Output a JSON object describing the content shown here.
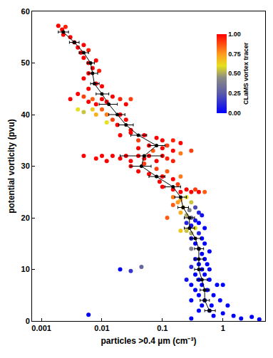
{
  "chart_data": {
    "type": "scatter",
    "x_label": "particles >0.4 µm (cm⁻³)",
    "y_label": "potential vorticity (pvu)",
    "log": "x",
    "grid": false,
    "xlim": [
      0.0007,
      5
    ],
    "xticks": [
      0.001,
      0.01,
      0.1,
      1
    ],
    "ylim": [
      0,
      60
    ],
    "yticks": [
      0,
      10,
      20,
      30,
      40,
      50,
      60
    ],
    "colorbar": {
      "title": "CLaMS vortex tracer",
      "range": [
        0,
        1
      ],
      "ticks": [
        {
          "value": 0,
          "label": "0.00"
        },
        {
          "value": 0.25,
          "label": "0.25"
        },
        {
          "value": 0.5,
          "label": "0.50"
        },
        {
          "value": 0.75,
          "label": "0.75"
        },
        {
          "value": 1,
          "label": "1.00"
        }
      ]
    },
    "series": [
      {
        "type": "scatter",
        "marker": "circle",
        "points": [
          [
            0.0019,
            57.2,
            1
          ],
          [
            0.0022,
            56.5,
            1
          ],
          [
            0.0025,
            57,
            0.95
          ],
          [
            0.0023,
            55.5,
            1
          ],
          [
            0.003,
            55,
            1
          ],
          [
            0.0035,
            54,
            1
          ],
          [
            0.004,
            53,
            1
          ],
          [
            0.005,
            53.5,
            1
          ],
          [
            0.0045,
            52,
            1
          ],
          [
            0.006,
            52.5,
            0.95
          ],
          [
            0.005,
            51,
            1
          ],
          [
            0.006,
            50,
            1
          ],
          [
            0.008,
            50.5,
            1
          ],
          [
            0.007,
            49,
            1
          ],
          [
            0.006,
            48,
            1
          ],
          [
            0.009,
            48.5,
            0.95
          ],
          [
            0.005,
            47,
            1
          ],
          [
            0.008,
            46,
            1
          ],
          [
            0.006,
            45,
            1
          ],
          [
            0.01,
            45.5,
            1
          ],
          [
            0.003,
            43,
            1
          ],
          [
            0.004,
            44,
            1
          ],
          [
            0.005,
            43.5,
            0.9
          ],
          [
            0.006,
            42.5,
            1
          ],
          [
            0.007,
            43,
            0.85
          ],
          [
            0.008,
            42,
            1
          ],
          [
            0.01,
            43,
            1
          ],
          [
            0.012,
            42.5,
            1
          ],
          [
            0.015,
            43.5,
            1
          ],
          [
            0.02,
            43,
            0.95
          ],
          [
            0.025,
            42,
            1
          ],
          [
            0.03,
            43,
            0.9
          ],
          [
            0.004,
            41,
            0.6
          ],
          [
            0.005,
            40.5,
            0.55
          ],
          [
            0.007,
            41,
            0.65
          ],
          [
            0.008,
            40,
            0.7
          ],
          [
            0.01,
            41,
            0.85
          ],
          [
            0.012,
            40,
            0.8
          ],
          [
            0.015,
            39,
            0.9
          ],
          [
            0.02,
            40,
            1
          ],
          [
            0.018,
            38,
            1
          ],
          [
            0.025,
            39,
            1
          ],
          [
            0.03,
            37,
            1
          ],
          [
            0.012,
            38.5,
            0.6
          ],
          [
            0.02,
            36,
            1
          ],
          [
            0.03,
            36.5,
            1
          ],
          [
            0.05,
            36,
            1
          ],
          [
            0.08,
            35.5,
            1
          ],
          [
            0.1,
            35,
            1
          ],
          [
            0.15,
            35,
            0.95
          ],
          [
            0.2,
            34.5,
            1
          ],
          [
            0.04,
            35,
            0.9
          ],
          [
            0.06,
            34,
            1
          ],
          [
            0.07,
            33,
            0.85
          ],
          [
            0.1,
            33.5,
            1
          ],
          [
            0.12,
            34,
            0.9
          ],
          [
            0.15,
            33,
            1
          ],
          [
            0.2,
            32.5,
            0.8
          ],
          [
            0.3,
            33,
            0.9
          ],
          [
            0.04,
            33.5,
            1
          ],
          [
            0.005,
            32,
            1
          ],
          [
            0.008,
            31.5,
            1
          ],
          [
            0.01,
            32,
            1
          ],
          [
            0.012,
            31,
            1
          ],
          [
            0.015,
            32,
            1
          ],
          [
            0.02,
            31.5,
            1
          ],
          [
            0.025,
            32,
            1
          ],
          [
            0.03,
            31,
            1
          ],
          [
            0.04,
            32,
            1
          ],
          [
            0.05,
            31.5,
            1
          ],
          [
            0.06,
            32,
            1
          ],
          [
            0.08,
            31,
            1
          ],
          [
            0.1,
            32,
            1
          ],
          [
            0.12,
            31.5,
            0.95
          ],
          [
            0.15,
            31,
            0.95
          ],
          [
            0.03,
            30,
            1
          ],
          [
            0.04,
            29,
            1
          ],
          [
            0.05,
            30.5,
            0.9
          ],
          [
            0.06,
            28.5,
            1
          ],
          [
            0.08,
            29.5,
            0.9
          ],
          [
            0.1,
            28,
            1
          ],
          [
            0.12,
            29,
            0.85
          ],
          [
            0.15,
            27.5,
            1
          ],
          [
            0.2,
            28,
            0.8
          ],
          [
            0.09,
            27,
            1
          ],
          [
            0.1,
            26,
            1
          ],
          [
            0.15,
            25.5,
            1
          ],
          [
            0.2,
            25,
            1
          ],
          [
            0.25,
            25.5,
            1
          ],
          [
            0.3,
            25,
            1
          ],
          [
            0.35,
            25.5,
            0.9
          ],
          [
            0.4,
            25,
            1
          ],
          [
            0.18,
            26.5,
            0.9
          ],
          [
            0.5,
            25,
            0.85
          ],
          [
            0.15,
            24,
            0.8
          ],
          [
            0.2,
            23.5,
            0.7
          ],
          [
            0.25,
            24,
            0.6
          ],
          [
            0.18,
            23,
            0.75
          ],
          [
            0.3,
            23,
            0.55
          ],
          [
            0.22,
            22,
            0.65
          ],
          [
            0.15,
            22.5,
            0.85
          ],
          [
            0.28,
            21.5,
            0.4
          ],
          [
            0.35,
            22,
            0.2
          ],
          [
            0.4,
            21,
            0.1
          ],
          [
            0.2,
            21,
            0.7
          ],
          [
            0.25,
            20.5,
            0.5
          ],
          [
            0.3,
            20,
            0.3
          ],
          [
            0.45,
            20.5,
            0.05
          ],
          [
            0.35,
            19.5,
            0.05
          ],
          [
            0.12,
            20,
            0.85
          ],
          [
            0.25,
            19,
            0.1
          ],
          [
            0.3,
            18.5,
            0.05
          ],
          [
            0.4,
            19,
            0
          ],
          [
            0.5,
            18,
            0
          ],
          [
            0.35,
            18,
            0.6
          ],
          [
            0.2,
            17.5,
            0.65
          ],
          [
            0.25,
            17.5,
            0.55
          ],
          [
            0.3,
            17,
            0.5
          ],
          [
            0.4,
            17,
            0.1
          ],
          [
            0.3,
            16,
            0.05
          ],
          [
            0.45,
            16,
            0
          ],
          [
            0.35,
            15,
            0
          ],
          [
            0.5,
            15,
            0
          ],
          [
            0.3,
            14,
            0.4
          ],
          [
            0.4,
            14,
            0.3
          ],
          [
            0.45,
            13,
            0
          ],
          [
            0.6,
            13.5,
            0
          ],
          [
            0.35,
            12,
            0.05
          ],
          [
            0.5,
            12,
            0
          ],
          [
            0.4,
            11,
            0
          ],
          [
            0.55,
            11,
            0
          ],
          [
            0.3,
            10.5,
            0.1
          ],
          [
            0.45,
            10,
            0
          ],
          [
            0.6,
            10,
            0
          ],
          [
            0.03,
            9.7,
            0.15
          ],
          [
            0.045,
            10.5,
            0.3
          ],
          [
            0.02,
            10,
            0
          ],
          [
            0.35,
            9,
            0
          ],
          [
            0.5,
            9,
            0
          ],
          [
            0.4,
            8,
            0
          ],
          [
            0.6,
            8,
            0
          ],
          [
            0.3,
            7,
            0
          ],
          [
            0.45,
            7,
            0
          ],
          [
            0.8,
            7,
            0
          ],
          [
            1,
            7,
            0
          ],
          [
            0.35,
            6,
            0
          ],
          [
            0.55,
            6,
            0
          ],
          [
            0.4,
            5,
            0
          ],
          [
            0.7,
            5,
            0
          ],
          [
            0.3,
            4,
            0
          ],
          [
            0.5,
            4,
            0
          ],
          [
            0.9,
            4,
            0
          ],
          [
            0.45,
            3,
            0
          ],
          [
            0.65,
            3,
            0
          ],
          [
            1.2,
            3,
            0
          ],
          [
            0.4,
            2,
            0
          ],
          [
            0.6,
            2,
            0
          ],
          [
            1,
            1.5,
            0
          ],
          [
            1.5,
            1,
            0
          ],
          [
            2,
            0.5,
            0
          ],
          [
            3,
            0.8,
            0
          ],
          [
            4,
            0.3,
            0
          ],
          [
            0.7,
            1,
            0
          ],
          [
            0.3,
            0.5,
            0
          ],
          [
            0.006,
            1.2,
            0
          ],
          [
            0.25,
            8,
            0.05
          ]
        ]
      },
      {
        "type": "line",
        "marker": "circle",
        "color": "#000000",
        "x": [
          0.0023,
          0.0035,
          0.005,
          0.0065,
          0.007,
          0.0075,
          0.01,
          0.013,
          0.018,
          0.025,
          0.04,
          0.08,
          0.05,
          0.045,
          0.08,
          0.15,
          0.2,
          0.22,
          0.28,
          0.28,
          0.35,
          0.4,
          0.4,
          0.4,
          0.45,
          0.5,
          0.5,
          0.6
        ],
        "y": [
          56,
          54,
          52,
          50,
          48,
          46,
          44,
          42,
          40,
          38,
          36,
          34,
          32,
          30,
          28,
          26,
          24,
          22,
          20,
          18,
          16,
          14,
          12,
          10,
          8,
          6,
          4,
          2
        ],
        "xerr_plus": [
          0.0005,
          0.0007,
          0.001,
          0.001,
          0.0015,
          0.0015,
          0.003,
          0.005,
          0.006,
          0.008,
          0.015,
          0.03,
          0.05,
          0.02,
          0.03,
          0.05,
          0.05,
          0.05,
          0.06,
          0.06,
          0.08,
          0.08,
          0.08,
          0.08,
          0.1,
          0.1,
          0.1,
          0.15
        ],
        "xerr_minus": [
          0.0004,
          0.0006,
          0.0008,
          0.0008,
          0.001,
          0.001,
          0.002,
          0.004,
          0.005,
          0.006,
          0.01,
          0.02,
          0.03,
          0.015,
          0.02,
          0.04,
          0.04,
          0.04,
          0.05,
          0.05,
          0.06,
          0.06,
          0.06,
          0.06,
          0.08,
          0.08,
          0.08,
          0.1
        ]
      }
    ]
  }
}
